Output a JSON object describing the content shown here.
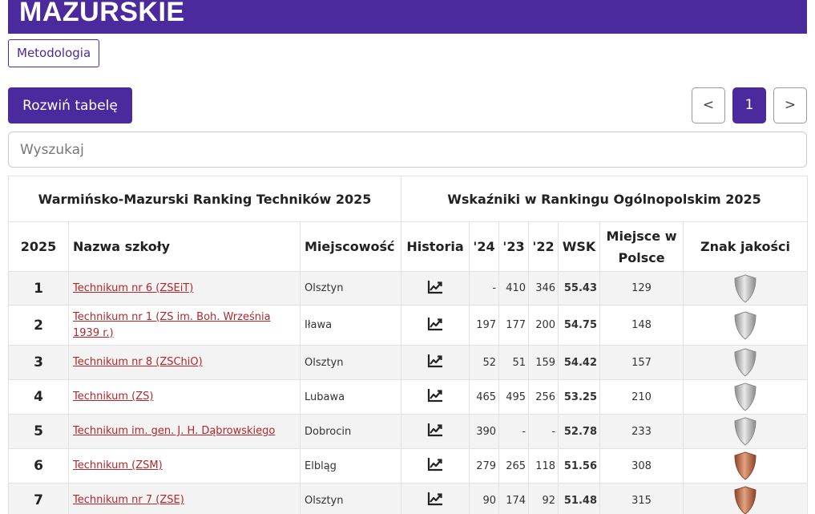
{
  "banner": {
    "title": "MAZURSKIE"
  },
  "methodology_label": "Metodologia",
  "expand_label": "Rozwiń tabelę",
  "pagination": {
    "prev": "<",
    "current": "1",
    "next": ">"
  },
  "search": {
    "placeholder": "Wyszukaj",
    "value": ""
  },
  "table": {
    "group_headers": {
      "left": "Warmińsko-Mazurski Ranking Techników 2025",
      "right": "Wskaźniki w Rankingu Ogólnopolskim 2025"
    },
    "columns": {
      "rank": "2025",
      "school": "Nazwa szkoły",
      "city": "Miejscowość",
      "history": "Historia",
      "y24": "'24",
      "y23": "'23",
      "y22": "'22",
      "wsk": "WSK",
      "place_pl": "Miejsce w Polsce",
      "quality": "Znak jakości"
    },
    "rows": [
      {
        "rank": "1",
        "school": "Technikum nr 6 (ZSEiT)",
        "city": "Olsztyn",
        "y24": "-",
        "y23": "410",
        "y22": "346",
        "wsk": "55.43",
        "place_pl": "129",
        "quality": "silver",
        "history_icon": "trend-chart-icon"
      },
      {
        "rank": "2",
        "school": "Technikum nr 1 (ZS im. Boh. Września 1939 r.)",
        "city": "Iława",
        "y24": "197",
        "y23": "177",
        "y22": "200",
        "wsk": "54.75",
        "place_pl": "148",
        "quality": "silver",
        "history_icon": "trend-chart-icon"
      },
      {
        "rank": "3",
        "school": "Technikum nr 8 (ZSChiO)",
        "city": "Olsztyn",
        "y24": "52",
        "y23": "51",
        "y22": "159",
        "wsk": "54.42",
        "place_pl": "157",
        "quality": "silver",
        "history_icon": "trend-chart-icon"
      },
      {
        "rank": "4",
        "school": "Technikum (ZS)",
        "city": "Lubawa",
        "y24": "465",
        "y23": "495",
        "y22": "256",
        "wsk": "53.25",
        "place_pl": "210",
        "quality": "silver",
        "history_icon": "trend-chart-icon"
      },
      {
        "rank": "5",
        "school": "Technikum im. gen. J. H. Dąbrowskiego",
        "city": "Dobrocin",
        "y24": "390",
        "y23": "-",
        "y22": "-",
        "wsk": "52.78",
        "place_pl": "233",
        "quality": "silver",
        "history_icon": "trend-chart-icon"
      },
      {
        "rank": "6",
        "school": "Technikum (ZSM)",
        "city": "Elbląg",
        "y24": "279",
        "y23": "265",
        "y22": "118",
        "wsk": "51.56",
        "place_pl": "308",
        "quality": "bronze",
        "history_icon": "trend-chart-icon"
      },
      {
        "rank": "7",
        "school": "Technikum nr 7 (ZSE)",
        "city": "Olsztyn",
        "y24": "90",
        "y23": "174",
        "y22": "92",
        "wsk": "51.48",
        "place_pl": "315",
        "quality": "bronze",
        "history_icon": "trend-chart-icon"
      }
    ]
  },
  "colors": {
    "brand": "#4a2a9c",
    "link": "#b3272b",
    "silver_light": "#e8e8e8",
    "silver_dark": "#8a8a8a",
    "bronze_light": "#e2a07e",
    "bronze_dark": "#8a4428"
  }
}
